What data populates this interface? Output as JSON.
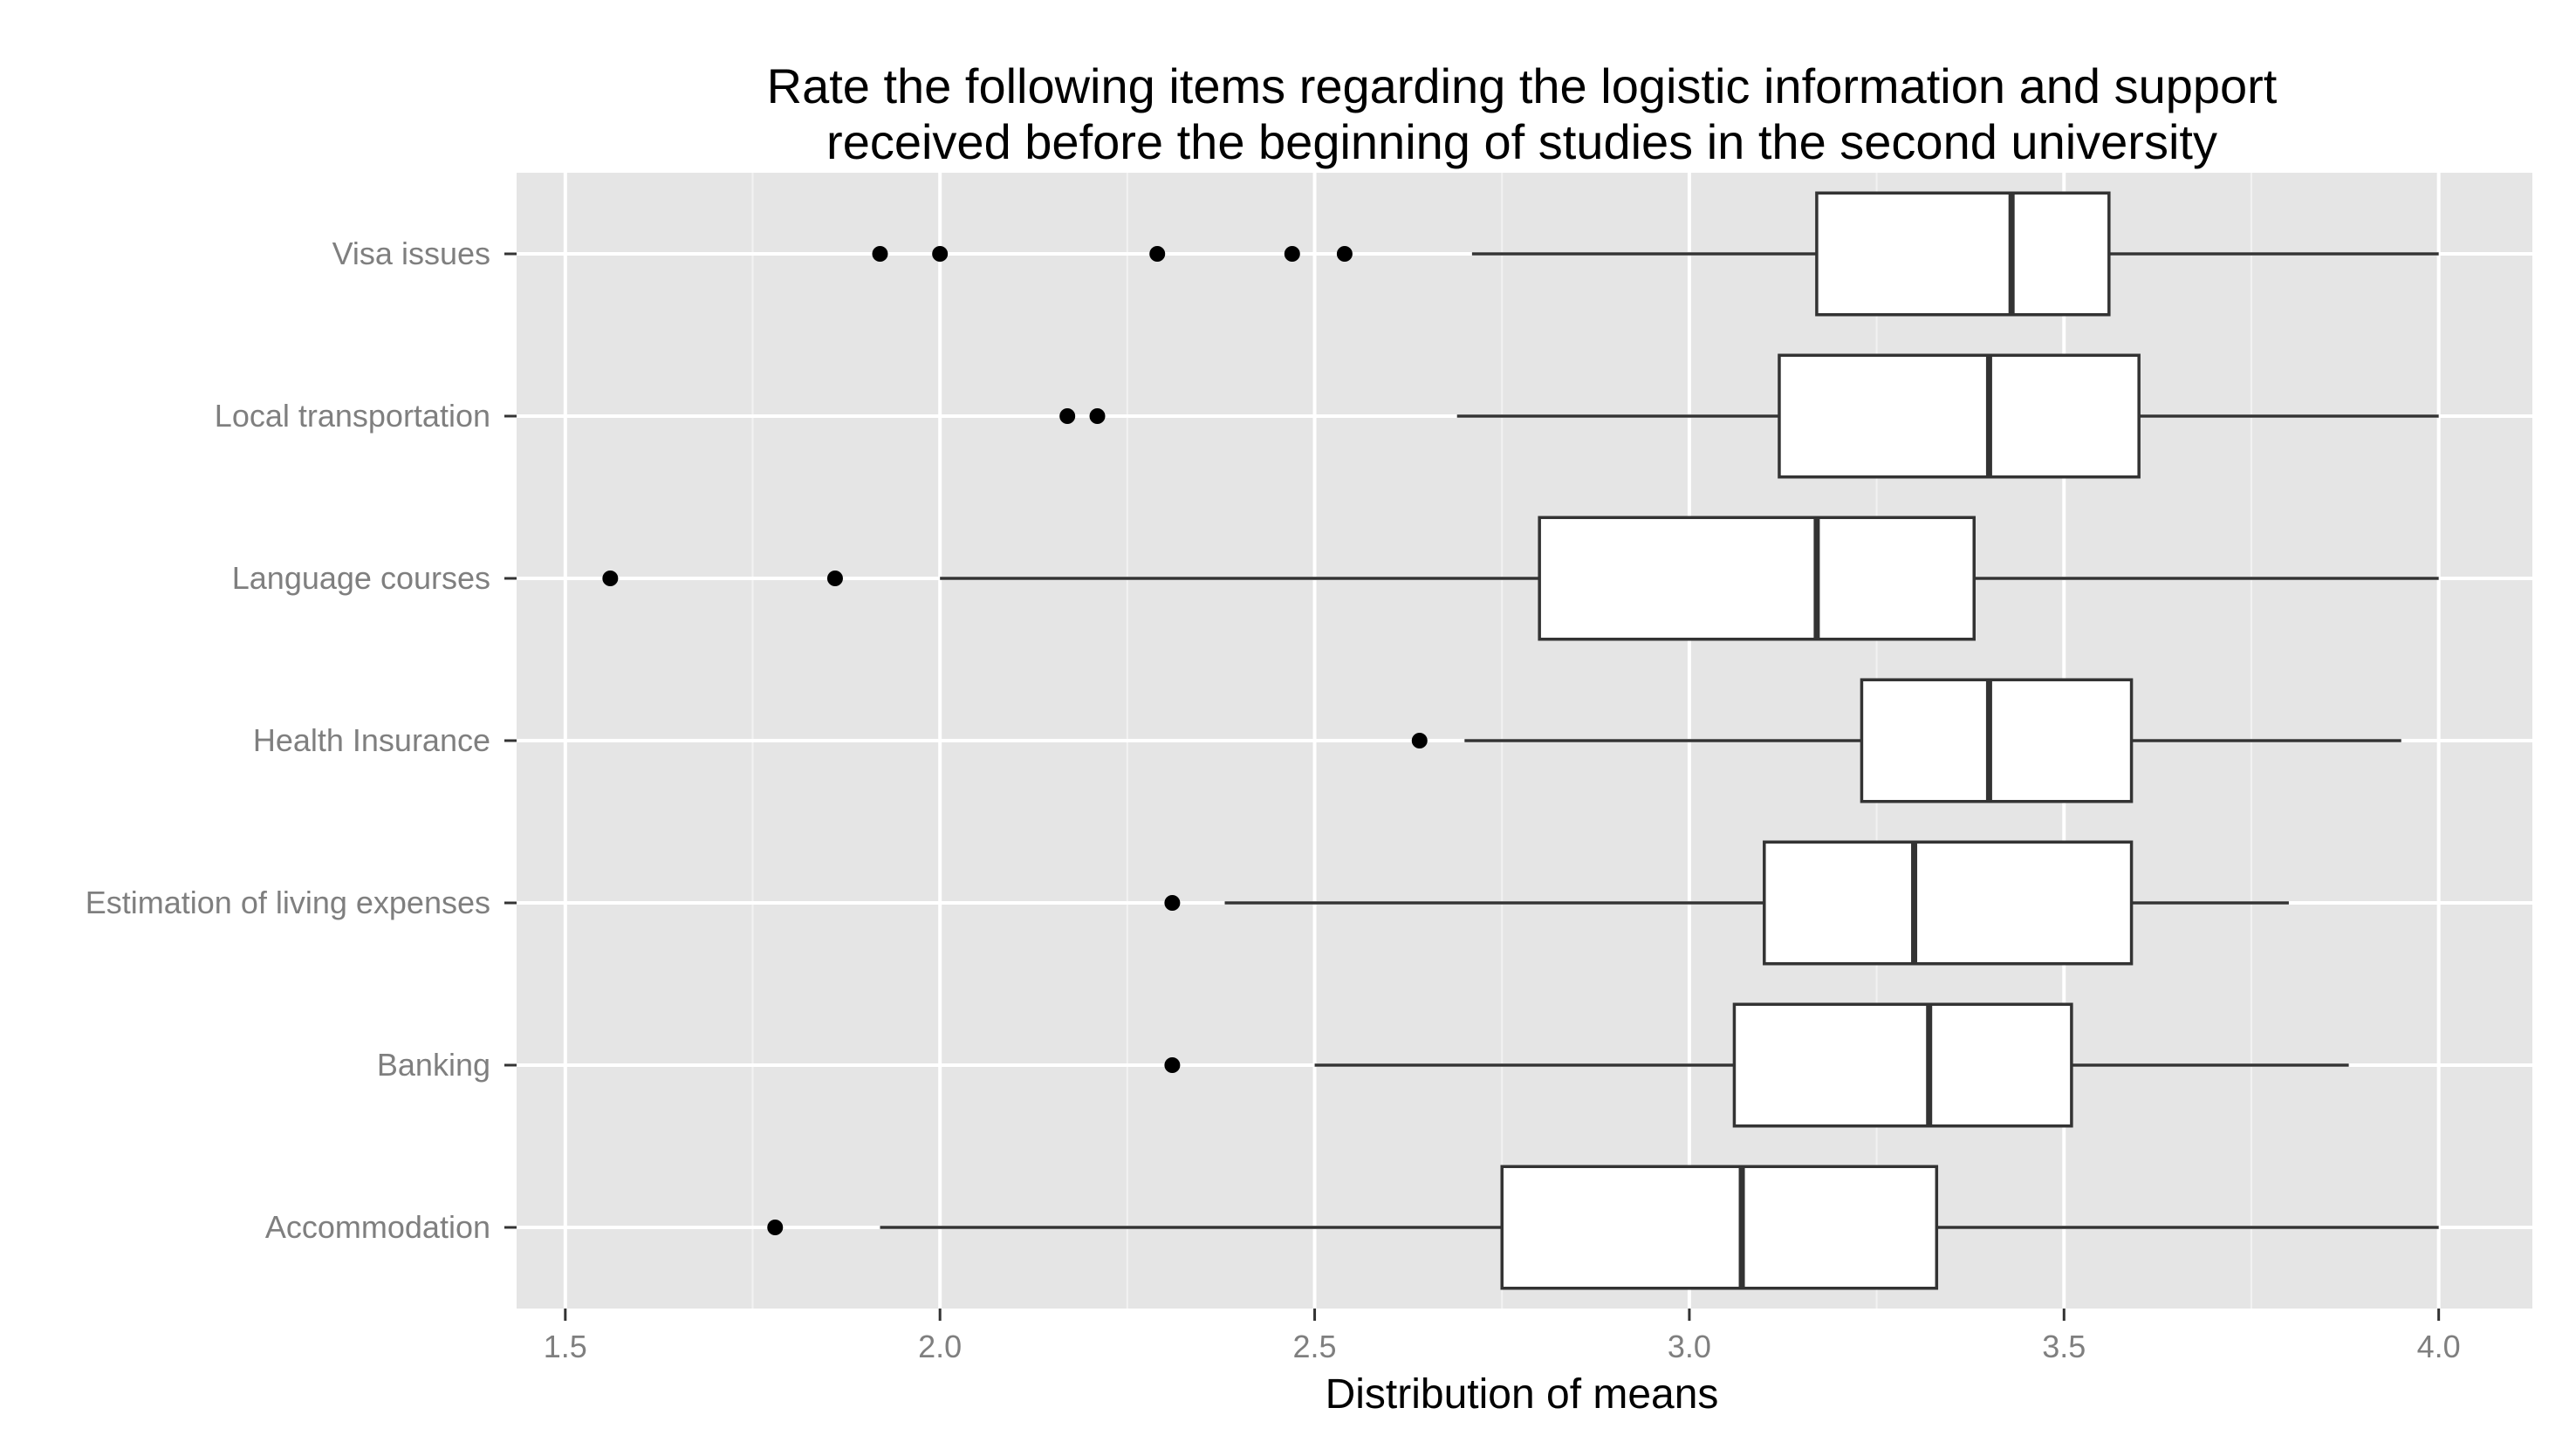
{
  "chart_data": {
    "type": "boxplot",
    "orientation": "horizontal",
    "title": [
      "Rate the following items regarding the logistic information and support",
      "received before the beginning of studies in the second university"
    ],
    "xlabel": "Distribution of means",
    "ylabel": "",
    "xlim": [
      1.435,
      4.125
    ],
    "xticks": [
      1.5,
      2.0,
      2.5,
      3.0,
      3.5,
      4.0
    ],
    "xtick_labels": [
      "1.5",
      "2.0",
      "2.5",
      "3.0",
      "3.5",
      "4.0"
    ],
    "grid": true,
    "categories": [
      "Visa issues",
      "Local transportation",
      "Language courses",
      "Health Insurance",
      "Estimation of living expenses",
      "Banking",
      "Accommodation"
    ],
    "boxes": [
      {
        "category": "Visa issues",
        "whisker_low": 2.71,
        "q1": 3.17,
        "median": 3.43,
        "q3": 3.56,
        "whisker_high": 4.0,
        "outliers": [
          1.92,
          2.0,
          2.29,
          2.47,
          2.54
        ]
      },
      {
        "category": "Local transportation",
        "whisker_low": 2.69,
        "q1": 3.12,
        "median": 3.4,
        "q3": 3.6,
        "whisker_high": 4.0,
        "outliers": [
          2.17,
          2.21
        ]
      },
      {
        "category": "Language courses",
        "whisker_low": 2.0,
        "q1": 2.8,
        "median": 3.17,
        "q3": 3.38,
        "whisker_high": 4.0,
        "outliers": [
          1.56,
          1.86
        ]
      },
      {
        "category": "Health Insurance",
        "whisker_low": 2.7,
        "q1": 3.23,
        "median": 3.4,
        "q3": 3.59,
        "whisker_high": 3.95,
        "outliers": [
          2.64
        ]
      },
      {
        "category": "Estimation of living expenses",
        "whisker_low": 2.38,
        "q1": 3.1,
        "median": 3.3,
        "q3": 3.59,
        "whisker_high": 3.8,
        "outliers": [
          2.31
        ]
      },
      {
        "category": "Banking",
        "whisker_low": 2.5,
        "q1": 3.06,
        "median": 3.32,
        "q3": 3.51,
        "whisker_high": 3.88,
        "outliers": [
          2.31
        ]
      },
      {
        "category": "Accommodation",
        "whisker_low": 1.92,
        "q1": 2.75,
        "median": 3.07,
        "q3": 3.33,
        "whisker_high": 4.0,
        "outliers": [
          1.78
        ]
      }
    ],
    "colors": {
      "panel_background": "#e5e5e5",
      "grid_major": "#ffffff",
      "grid_minor": "#f2f2f2",
      "box_fill": "#ffffff",
      "box_stroke": "#333333",
      "outlier": "#000000",
      "tick_text": "#7f7f7f"
    }
  }
}
